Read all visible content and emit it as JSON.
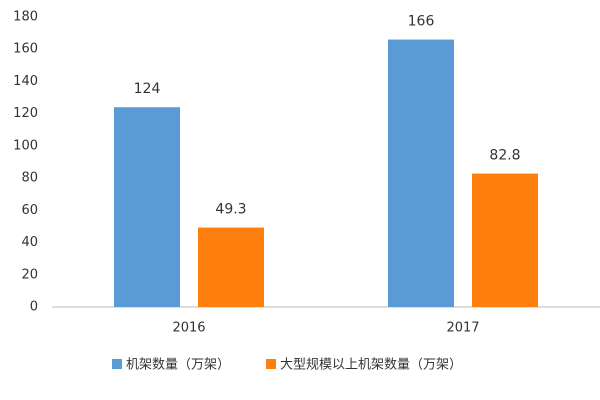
{
  "chart_data": {
    "type": "bar",
    "categories": [
      "2016",
      "2017"
    ],
    "series": [
      {
        "name": "机架数量（万架）",
        "color": "#5b9bd5",
        "values": [
          124,
          166
        ]
      },
      {
        "name": "大型规模以上机架数量（万架）",
        "color": "#ff7f0e",
        "values": [
          49.3,
          82.8
        ]
      }
    ],
    "ylim": [
      0,
      180
    ],
    "yticks": [
      0,
      20,
      40,
      60,
      80,
      100,
      120,
      140,
      160,
      180
    ],
    "grid": false,
    "legend": "bottom",
    "data_labels": true
  }
}
